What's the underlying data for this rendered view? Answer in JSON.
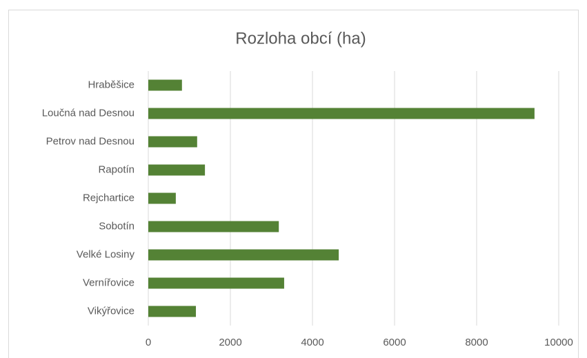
{
  "chart_data": {
    "type": "bar",
    "orientation": "horizontal",
    "title": "Rozloha obcí (ha)",
    "categories": [
      "Hraběšice",
      "Loučná nad Desnou",
      "Petrov nad Desnou",
      "Rapotín",
      "Rejchartice",
      "Sobotín",
      "Velké Losiny",
      "Vernířovice",
      "Vikýřovice"
    ],
    "values": [
      820,
      9410,
      1190,
      1380,
      670,
      3180,
      4640,
      3310,
      1160
    ],
    "color": "#548235",
    "xlim": [
      0,
      10000
    ],
    "xticks": [
      0,
      2000,
      4000,
      6000,
      8000,
      10000
    ],
    "grid": true
  }
}
